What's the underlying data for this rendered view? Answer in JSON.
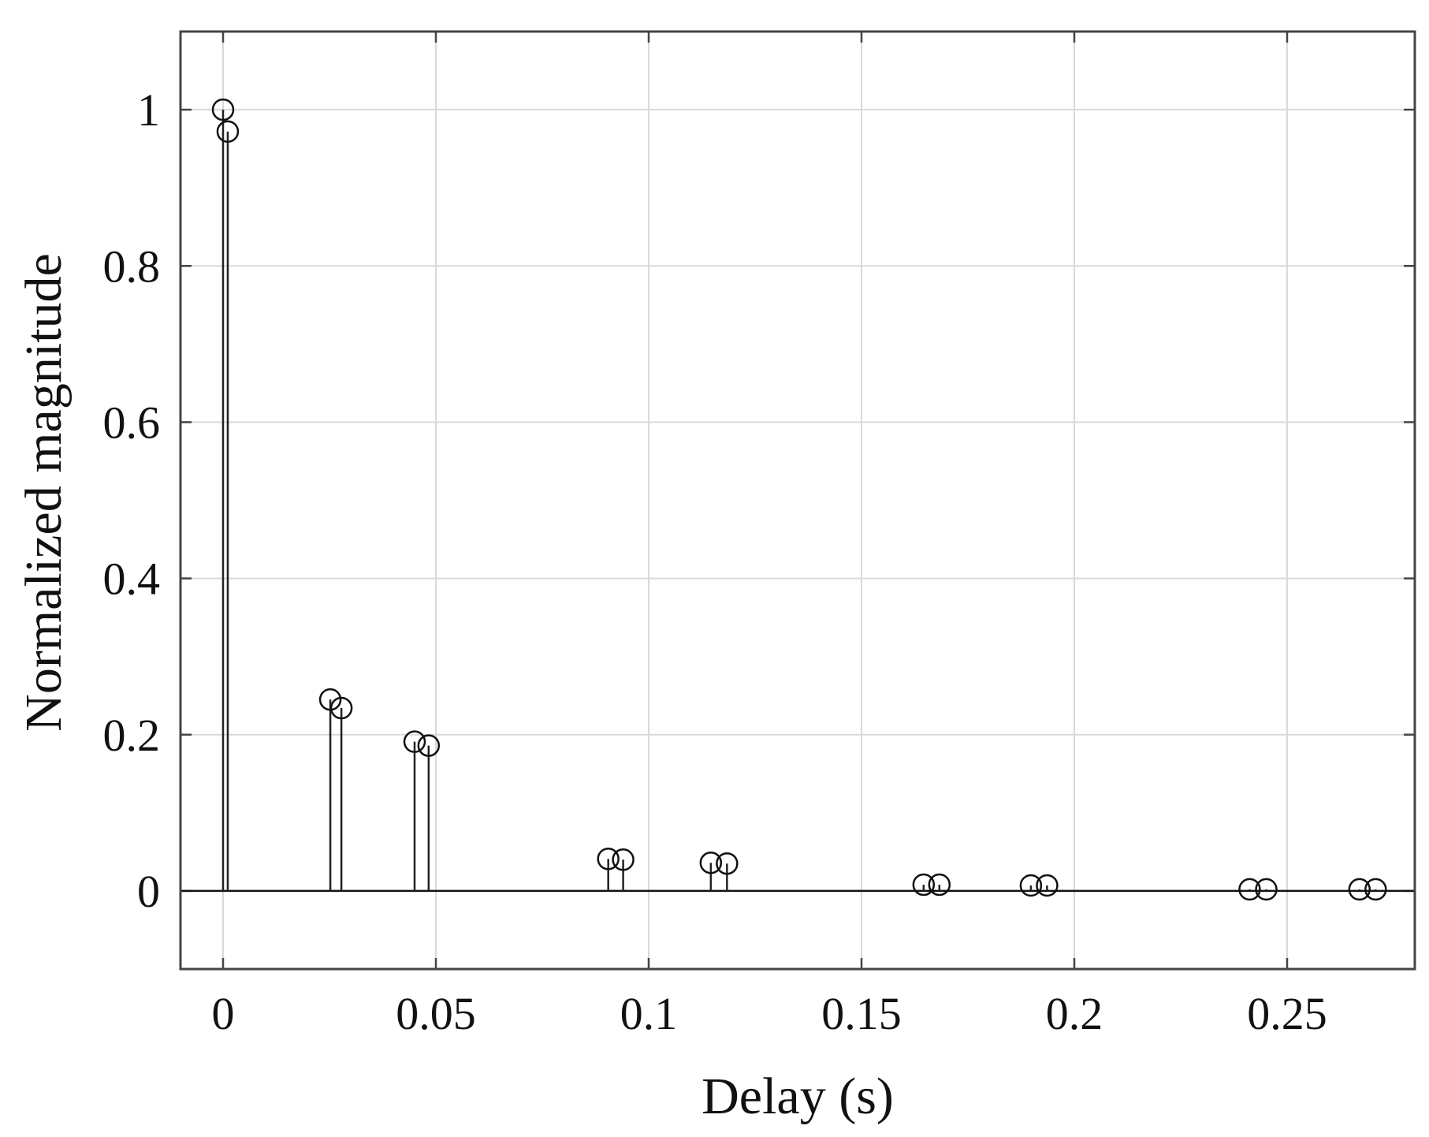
{
  "chart_data": {
    "type": "stem",
    "title": "",
    "xlabel": "Delay (s)",
    "ylabel": "Normalized magnitude",
    "xlim": [
      -0.01,
      0.28
    ],
    "ylim": [
      -0.1,
      1.1
    ],
    "grid": true,
    "x_ticks": [
      {
        "value": 0,
        "label": "0"
      },
      {
        "value": 0.05,
        "label": "0.05"
      },
      {
        "value": 0.1,
        "label": "0.1"
      },
      {
        "value": 0.15,
        "label": "0.15"
      },
      {
        "value": 0.2,
        "label": "0.2"
      },
      {
        "value": 0.25,
        "label": "0.25"
      }
    ],
    "y_ticks": [
      {
        "value": 0,
        "label": "0"
      },
      {
        "value": 0.2,
        "label": "0.2"
      },
      {
        "value": 0.4,
        "label": "0.4"
      },
      {
        "value": 0.6,
        "label": "0.6"
      },
      {
        "value": 0.8,
        "label": "0.8"
      },
      {
        "value": 1,
        "label": "1"
      }
    ],
    "points": [
      {
        "x": 0.0,
        "y": 1.0
      },
      {
        "x": 0.0011,
        "y": 0.972
      },
      {
        "x": 0.0252,
        "y": 0.245
      },
      {
        "x": 0.0278,
        "y": 0.234
      },
      {
        "x": 0.045,
        "y": 0.191
      },
      {
        "x": 0.0483,
        "y": 0.186
      },
      {
        "x": 0.0905,
        "y": 0.041
      },
      {
        "x": 0.094,
        "y": 0.04
      },
      {
        "x": 0.1146,
        "y": 0.036
      },
      {
        "x": 0.1184,
        "y": 0.035
      },
      {
        "x": 0.1646,
        "y": 0.008
      },
      {
        "x": 0.1683,
        "y": 0.008
      },
      {
        "x": 0.1898,
        "y": 0.007
      },
      {
        "x": 0.1936,
        "y": 0.007
      },
      {
        "x": 0.2412,
        "y": 0.002
      },
      {
        "x": 0.2451,
        "y": 0.002
      },
      {
        "x": 0.267,
        "y": 0.002
      },
      {
        "x": 0.2708,
        "y": 0.002
      }
    ]
  }
}
